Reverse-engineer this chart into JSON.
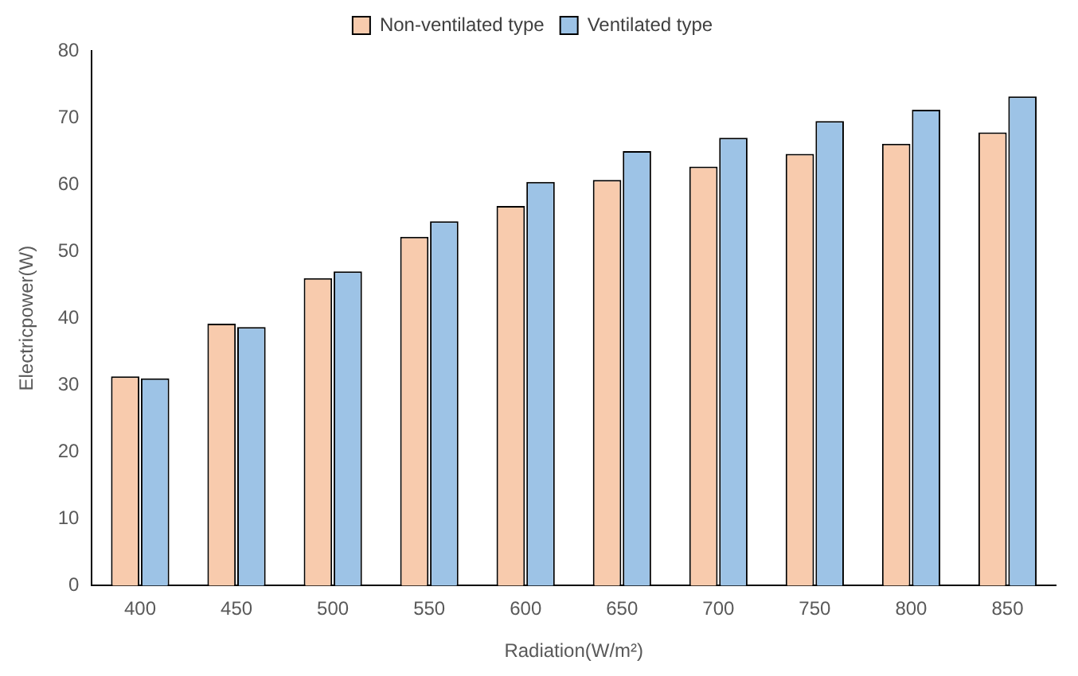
{
  "chart_data": {
    "type": "bar",
    "xlabel": "Radiation(W/m²)",
    "ylabel": "Electricpower(W)",
    "categories": [
      "400",
      "450",
      "500",
      "550",
      "600",
      "650",
      "700",
      "750",
      "800",
      "850"
    ],
    "series": [
      {
        "name": "Non-ventilated type",
        "color": "#f8cbad",
        "values": [
          31.3,
          39.2,
          46,
          52.2,
          56.8,
          60.7,
          62.7,
          64.6,
          66.1,
          67.8
        ]
      },
      {
        "name": "Ventilated type",
        "color": "#9dc3e6",
        "values": [
          31,
          38.7,
          47,
          54.5,
          60.4,
          65,
          67,
          69.5,
          71.2,
          73.2
        ]
      }
    ],
    "ylim": [
      0,
      80
    ],
    "yticks": [
      0,
      10,
      20,
      30,
      40,
      50,
      60,
      70,
      80
    ],
    "grid": false,
    "legend": "top"
  }
}
